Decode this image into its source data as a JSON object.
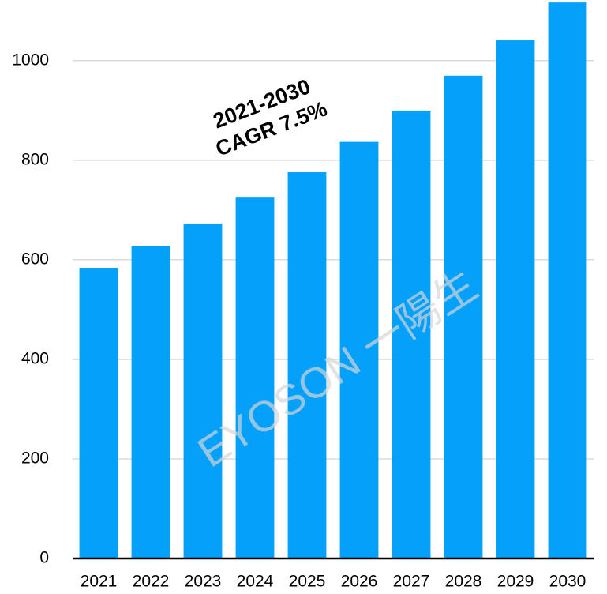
{
  "chart_data": {
    "type": "bar",
    "annotation": [
      "2021-2030",
      "CAGR 7.5%"
    ],
    "watermark": "EYOSON 一陽生",
    "categories": [
      "2021",
      "2022",
      "2023",
      "2024",
      "2025",
      "2026",
      "2027",
      "2028",
      "2029",
      "2030"
    ],
    "values": [
      584,
      627,
      673,
      725,
      776,
      837,
      900,
      970,
      1041,
      1117
    ],
    "color": "#05a0fa",
    "ylim": [
      0,
      1122
    ],
    "yticks": [
      0,
      200,
      400,
      600,
      800,
      1000
    ],
    "grid": true
  }
}
